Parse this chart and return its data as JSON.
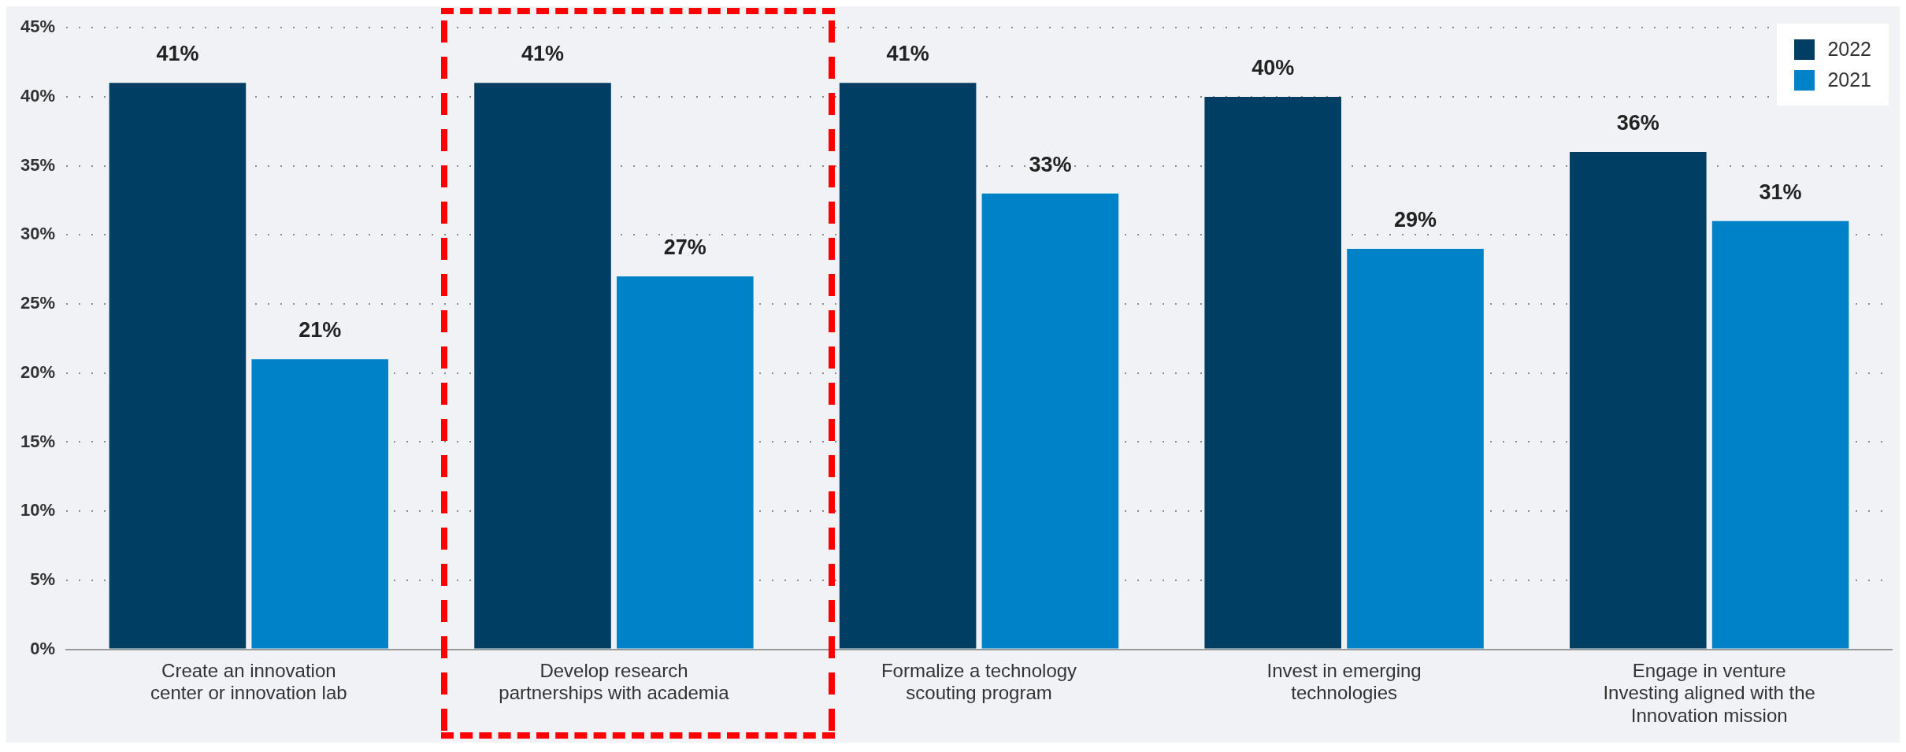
{
  "chart_data": {
    "type": "bar",
    "categories": [
      "Create an innovation center or innovation lab",
      "Develop research partnerships with academia",
      "Formalize a technology scouting program",
      "Invest in emerging technologies",
      "Engage in venture Investing aligned with the Innovation mission"
    ],
    "series": [
      {
        "name": "2022",
        "color": "#003f63",
        "values": [
          41,
          41,
          41,
          40,
          36
        ],
        "value_labels": [
          "41%",
          "41%",
          "41%",
          "40%",
          "36%"
        ]
      },
      {
        "name": "2021",
        "color": "#0082c8",
        "values": [
          21,
          27,
          33,
          29,
          31
        ],
        "value_labels": [
          "21%",
          "27%",
          "33%",
          "29%",
          "31%"
        ]
      }
    ],
    "ylim": [
      0,
      45
    ],
    "yticks": [
      {
        "value": 0,
        "label": "0%"
      },
      {
        "value": 5,
        "label": "5%"
      },
      {
        "value": 10,
        "label": "10%"
      },
      {
        "value": 15,
        "label": "15%"
      },
      {
        "value": 20,
        "label": "20%"
      },
      {
        "value": 25,
        "label": "25%"
      },
      {
        "value": 30,
        "label": "30%"
      },
      {
        "value": 35,
        "label": "35%"
      },
      {
        "value": 40,
        "label": "40%"
      },
      {
        "value": 45,
        "label": "45%"
      }
    ],
    "grid": "y",
    "legend": "top right"
  }
}
